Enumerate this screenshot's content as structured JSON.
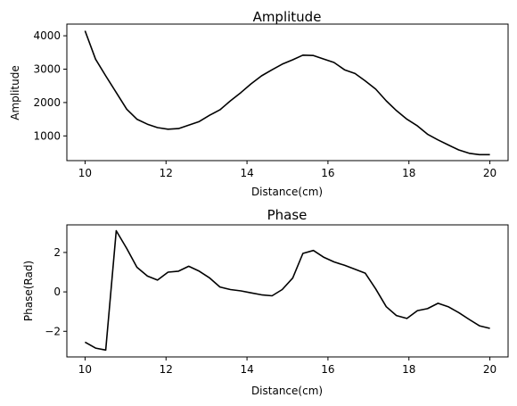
{
  "chart_data": [
    {
      "type": "line",
      "title": "Amplitude",
      "xlabel": "Distance(cm)",
      "ylabel": "Amplitude",
      "xlim": [
        9.55,
        20.45
      ],
      "ylim": [
        260,
        4350
      ],
      "xticks": [
        10,
        12,
        14,
        16,
        18,
        20
      ],
      "yticks": [
        1000,
        2000,
        3000,
        4000
      ],
      "line_color": "#000000",
      "x": [
        10.0,
        10.26,
        10.51,
        10.77,
        11.03,
        11.28,
        11.54,
        11.79,
        12.05,
        12.31,
        12.56,
        12.82,
        13.08,
        13.33,
        13.59,
        13.85,
        14.1,
        14.36,
        14.62,
        14.87,
        15.13,
        15.38,
        15.64,
        15.9,
        16.15,
        16.41,
        16.67,
        16.92,
        17.18,
        17.44,
        17.69,
        17.95,
        18.21,
        18.46,
        18.72,
        18.97,
        19.23,
        19.49,
        19.74,
        20.0
      ],
      "y": [
        4150,
        3300,
        2800,
        2300,
        1800,
        1500,
        1350,
        1250,
        1200,
        1220,
        1320,
        1430,
        1620,
        1780,
        2050,
        2300,
        2560,
        2800,
        2980,
        3150,
        3280,
        3420,
        3410,
        3300,
        3200,
        2980,
        2870,
        2650,
        2400,
        2050,
        1760,
        1500,
        1300,
        1050,
        880,
        730,
        580,
        480,
        440,
        440
      ]
    },
    {
      "type": "line",
      "title": "Phase",
      "xlabel": "Distance(cm)",
      "ylabel": "Phase(Rad)",
      "xlim": [
        9.55,
        20.45
      ],
      "ylim": [
        -3.3,
        3.4
      ],
      "xticks": [
        10,
        12,
        14,
        16,
        18,
        20
      ],
      "yticks": [
        -2,
        0,
        2
      ],
      "line_color": "#000000",
      "x": [
        10.0,
        10.26,
        10.51,
        10.77,
        11.03,
        11.28,
        11.54,
        11.79,
        12.05,
        12.31,
        12.56,
        12.82,
        13.08,
        13.33,
        13.59,
        13.85,
        14.1,
        14.36,
        14.62,
        14.87,
        15.13,
        15.38,
        15.64,
        15.9,
        16.15,
        16.41,
        16.67,
        16.92,
        17.18,
        17.44,
        17.69,
        17.95,
        18.21,
        18.46,
        18.72,
        18.97,
        19.23,
        19.49,
        19.74,
        20.0
      ],
      "y": [
        -2.55,
        -2.85,
        -2.95,
        3.1,
        2.2,
        1.25,
        0.8,
        0.6,
        1.0,
        1.05,
        1.3,
        1.05,
        0.7,
        0.25,
        0.12,
        0.05,
        -0.05,
        -0.15,
        -0.2,
        0.12,
        0.7,
        1.95,
        2.1,
        1.75,
        1.52,
        1.35,
        1.15,
        0.95,
        0.15,
        -0.75,
        -1.2,
        -1.35,
        -0.95,
        -0.85,
        -0.58,
        -0.75,
        -1.05,
        -1.4,
        -1.72,
        -1.85
      ]
    }
  ]
}
